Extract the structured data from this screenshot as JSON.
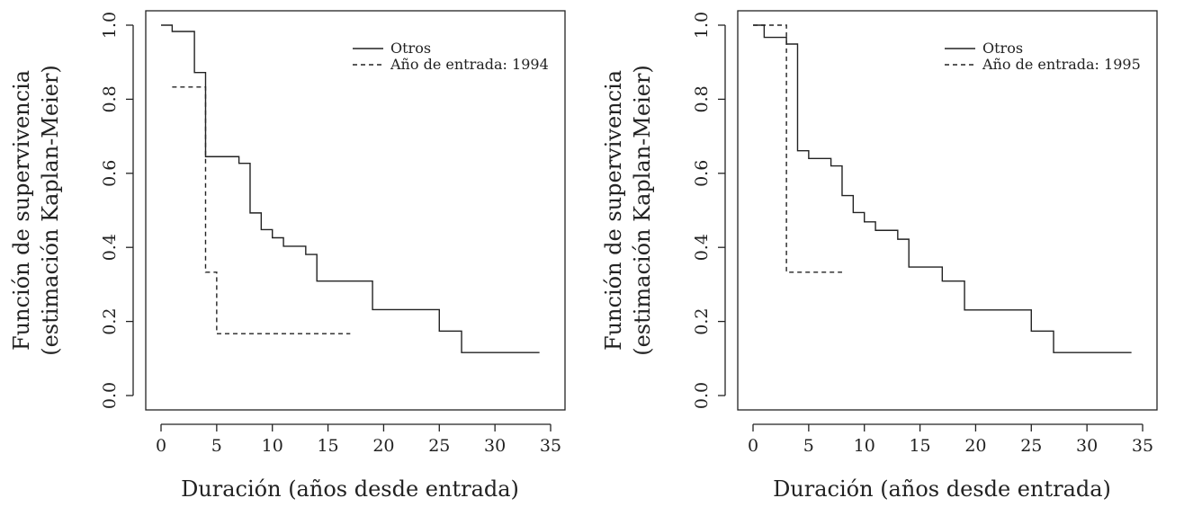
{
  "chart_data": [
    {
      "type": "line",
      "step": true,
      "title": "",
      "xlabel": "Duración (años desde entrada)",
      "ylabel": [
        "Función de supervivencia",
        "(estimación Kaplan-Meier)"
      ],
      "xlim": [
        0,
        35
      ],
      "ylim": [
        0,
        1
      ],
      "xticks": [
        0,
        5,
        10,
        15,
        20,
        25,
        30,
        35
      ],
      "yticks": [
        0.0,
        0.2,
        0.4,
        0.6,
        0.8,
        1.0
      ],
      "xtick_labels": [
        "0",
        "5",
        "10",
        "15",
        "20",
        "25",
        "30",
        "35"
      ],
      "ytick_labels": [
        "0.0",
        "0.2",
        "0.4",
        "0.6",
        "0.8",
        "1.0"
      ],
      "legend": "top-right",
      "grid": false,
      "series": [
        {
          "name": "Otros",
          "style": "solid",
          "x": [
            0,
            1,
            3,
            4,
            7,
            8,
            9,
            10,
            11,
            13,
            14,
            19,
            25,
            27,
            34
          ],
          "y": [
            1.0,
            0.983,
            0.872,
            0.645,
            0.627,
            0.493,
            0.448,
            0.426,
            0.403,
            0.381,
            0.309,
            0.232,
            0.174,
            0.116,
            0.116
          ]
        },
        {
          "name": "Año de entrada: 1994",
          "style": "dashed",
          "x": [
            1,
            4,
            5,
            17
          ],
          "y": [
            0.833,
            0.333,
            0.167,
            0.167
          ]
        }
      ]
    },
    {
      "type": "line",
      "step": true,
      "title": "",
      "xlabel": "Duración (años desde entrada)",
      "ylabel": [
        "Función de supervivencia",
        "(estimación Kaplan-Meier)"
      ],
      "xlim": [
        0,
        35
      ],
      "ylim": [
        0,
        1
      ],
      "xticks": [
        0,
        5,
        10,
        15,
        20,
        25,
        30,
        35
      ],
      "yticks": [
        0.0,
        0.2,
        0.4,
        0.6,
        0.8,
        1.0
      ],
      "xtick_labels": [
        "0",
        "5",
        "10",
        "15",
        "20",
        "25",
        "30",
        "35"
      ],
      "ytick_labels": [
        "0.0",
        "0.2",
        "0.4",
        "0.6",
        "0.8",
        "1.0"
      ],
      "legend": "top-right",
      "grid": false,
      "series": [
        {
          "name": "Otros",
          "style": "solid",
          "x": [
            0,
            1,
            3,
            4,
            5,
            7,
            8,
            9,
            10,
            11,
            13,
            14,
            17,
            19,
            25,
            27,
            34
          ],
          "y": [
            1.0,
            0.967,
            0.949,
            0.661,
            0.64,
            0.62,
            0.54,
            0.494,
            0.469,
            0.446,
            0.422,
            0.347,
            0.309,
            0.231,
            0.174,
            0.116,
            0.116
          ]
        },
        {
          "name": "Año de entrada: 1995",
          "style": "dashed",
          "x": [
            0,
            3,
            8
          ],
          "y": [
            1.0,
            0.333,
            0.333
          ]
        }
      ]
    }
  ]
}
